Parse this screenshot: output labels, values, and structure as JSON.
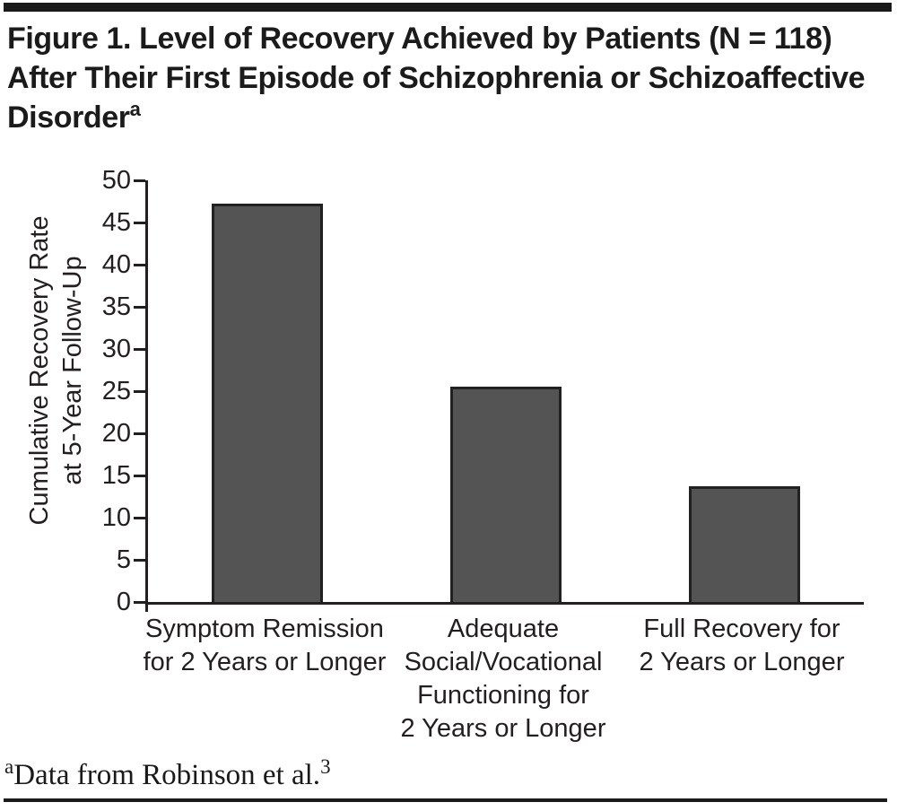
{
  "figure": {
    "title_line1": "Figure 1. Level of Recovery Achieved by Patients (N = 118)",
    "title_line2": "After Their First Episode of Schizophrenia or Schizoaffective",
    "title_line3_base": "Disorder",
    "title_superscript": "a",
    "footnote_marker": "a",
    "footnote_text": "Data from Robinson et al.",
    "footnote_reference": "3"
  },
  "chart_data": {
    "type": "bar",
    "title": "Figure 1. Level of Recovery Achieved by Patients (N = 118) After Their First Episode of Schizophrenia or Schizoaffective Disorder",
    "categories": [
      "Symptom Remission\nfor 2 Years or Longer",
      "Adequate\nSocial/Vocational\nFunctioning for\n2 Years or Longer",
      "Full Recovery for\n2 Years or Longer"
    ],
    "values": [
      47.2,
      25.5,
      13.7
    ],
    "xlabel": "",
    "ylabel_line1": "Cumulative Recovery Rate",
    "ylabel_line2": "at 5-Year Follow-Up",
    "ylim": [
      0,
      50
    ],
    "yticks": [
      50,
      45,
      40,
      35,
      30,
      25,
      20,
      15,
      10,
      5,
      0
    ],
    "grid": false,
    "legend_position": "none",
    "bar_color": "#545454",
    "bar_border_color": "#212121",
    "axis_color": "#231f20"
  }
}
